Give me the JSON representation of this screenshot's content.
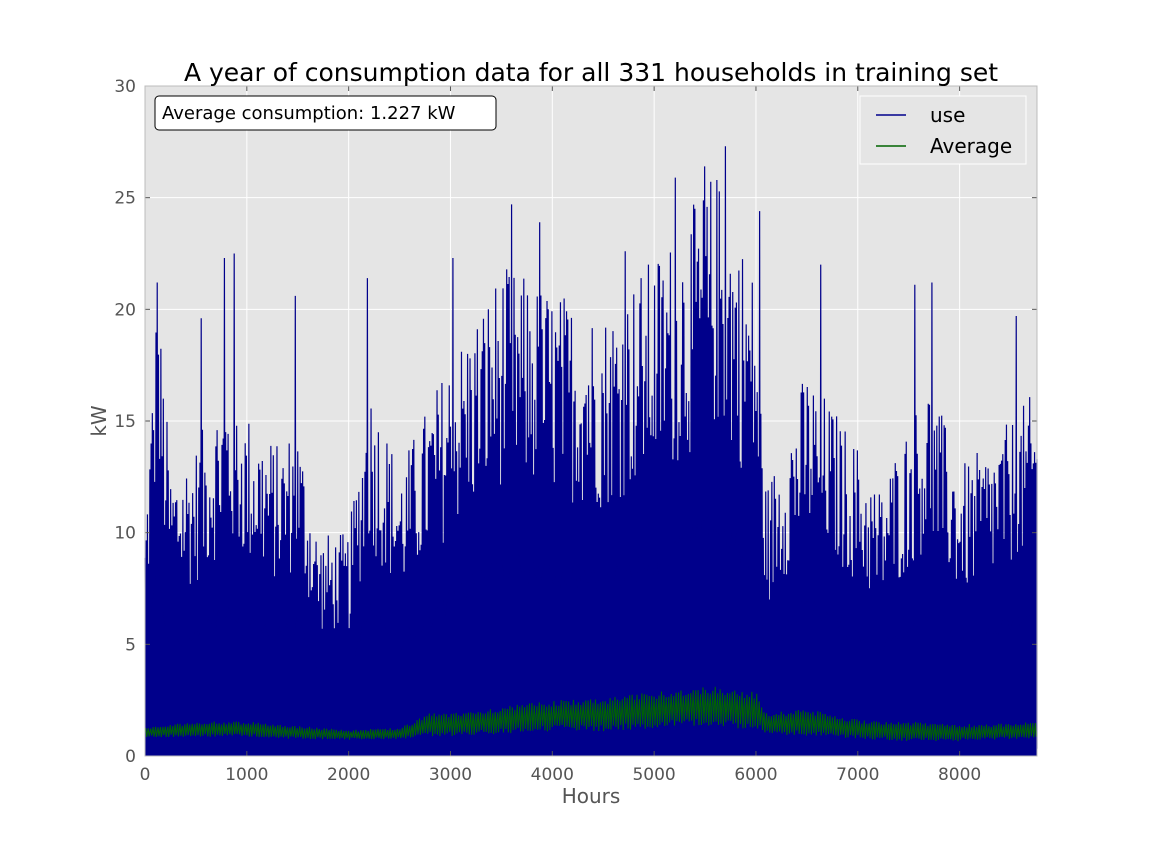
{
  "chart_data": {
    "type": "line",
    "title": "A year of consumption data for all 331 households in training set",
    "xlabel": "Hours",
    "ylabel": "kW",
    "xlim": [
      0,
      8760
    ],
    "ylim": [
      0,
      30
    ],
    "xticks": [
      0,
      1000,
      2000,
      3000,
      4000,
      5000,
      6000,
      7000,
      8000
    ],
    "yticks": [
      0,
      5,
      10,
      15,
      20,
      25,
      30
    ],
    "grid": true,
    "legend_position": "top-right",
    "annotation": "Average consumption: 1.227 kW",
    "background_color": "#e5e5e5",
    "series": [
      {
        "name": "use",
        "color": "#00008b",
        "envelope_x": [
          0,
          120,
          250,
          500,
          800,
          1000,
          1300,
          1500,
          1700,
          2000,
          2200,
          2500,
          3000,
          3500,
          4000,
          4500,
          5000,
          5300,
          5600,
          5800,
          6000,
          6100,
          6500,
          7000,
          7200,
          7500,
          7700,
          8000,
          8300,
          8760
        ],
        "envelope_max": [
          10.5,
          21.2,
          13,
          14,
          17,
          15.5,
          14,
          15,
          10,
          10,
          17,
          13,
          18,
          22,
          21,
          20,
          22.5,
          24,
          26.5,
          24,
          21.5,
          12,
          17.5,
          14,
          12,
          15,
          17,
          13,
          14,
          16.5
        ],
        "spikes": [
          [
            120,
            21.2
          ],
          [
            550,
            19.6
          ],
          [
            780,
            22.3
          ],
          [
            870,
            22.5
          ],
          [
            1480,
            20.6
          ],
          [
            2180,
            21.4
          ],
          [
            3020,
            22.3
          ],
          [
            3600,
            24.7
          ],
          [
            3880,
            23.9
          ],
          [
            4720,
            22.6
          ],
          [
            5210,
            25.9
          ],
          [
            5500,
            26.4
          ],
          [
            5700,
            27.3
          ],
          [
            6040,
            24.4
          ],
          [
            6640,
            22
          ],
          [
            7560,
            21.1
          ],
          [
            7730,
            21.2
          ],
          [
            8560,
            19.7
          ]
        ],
        "base_level": 0.2
      },
      {
        "name": "Average",
        "color": "#006400",
        "envelope_x": [
          0,
          500,
          1000,
          1500,
          2000,
          2500,
          2800,
          3000,
          3500,
          4000,
          4500,
          5000,
          5200,
          5400,
          5600,
          5800,
          6000,
          6100,
          6500,
          7000,
          7500,
          8000,
          8500,
          8760
        ],
        "envelope_max": [
          1.3,
          1.6,
          1.6,
          1.4,
          1.2,
          1.3,
          2.0,
          2.0,
          2.3,
          2.6,
          2.7,
          3.0,
          3.1,
          3.2,
          3.3,
          3.1,
          3.0,
          2.0,
          2.2,
          1.7,
          1.6,
          1.5,
          1.5,
          1.6
        ],
        "envelope_min": [
          0.8,
          0.8,
          0.8,
          0.7,
          0.7,
          0.7,
          0.8,
          0.8,
          0.9,
          1.0,
          1.0,
          1.1,
          1.2,
          1.2,
          1.2,
          1.1,
          1.1,
          0.9,
          0.8,
          0.7,
          0.6,
          0.6,
          0.7,
          0.7
        ]
      }
    ]
  }
}
